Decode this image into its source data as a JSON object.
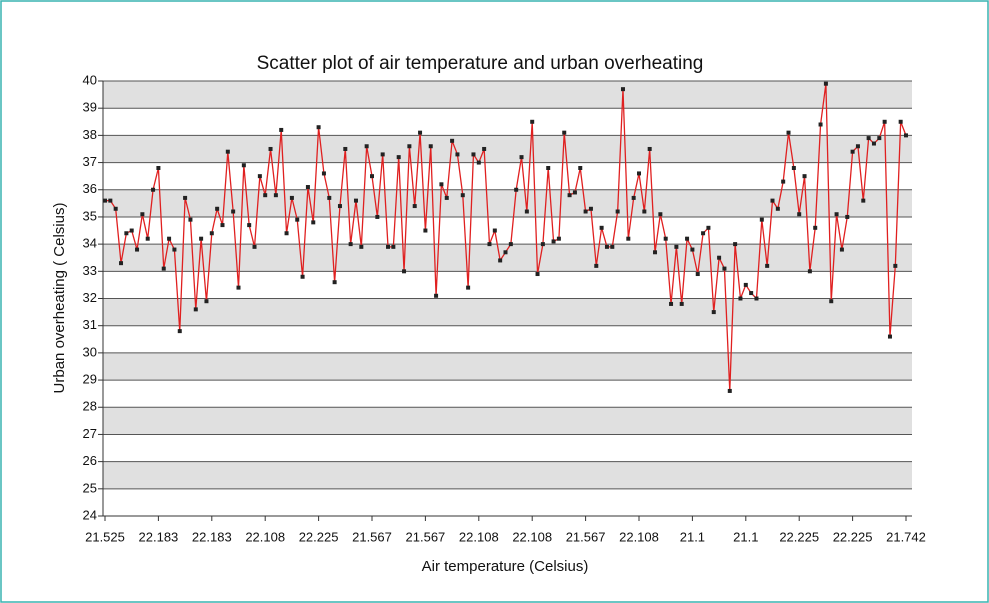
{
  "chart_data": {
    "type": "line",
    "markers": true,
    "title": "Scatter plot of air temperature and urban overheating",
    "x_label": "Air temperature (Celsius)",
    "y_label": "Urban overheating ( Celsius)",
    "series": [
      {
        "name": "Urban overheating",
        "line_color": "#e02020",
        "marker_color": "#222222",
        "values": [
          35.6,
          35.6,
          35.3,
          33.3,
          34.4,
          34.5,
          33.8,
          35.1,
          34.2,
          36.0,
          36.8,
          33.1,
          34.2,
          33.8,
          30.8,
          35.7,
          34.9,
          31.6,
          34.2,
          31.9,
          34.4,
          35.3,
          34.7,
          37.4,
          35.2,
          32.4,
          36.9,
          34.7,
          33.9,
          36.5,
          35.8,
          37.5,
          35.8,
          38.2,
          34.4,
          35.7,
          34.9,
          32.8,
          36.1,
          34.8,
          38.3,
          36.6,
          35.7,
          32.6,
          35.4,
          37.5,
          34.0,
          35.6,
          33.9,
          37.6,
          36.5,
          35.0,
          37.3,
          33.9,
          33.9,
          37.2,
          33.0,
          37.6,
          35.4,
          38.1,
          34.5,
          37.6,
          32.1,
          36.2,
          35.7,
          37.8,
          37.3,
          35.8,
          32.4,
          37.3,
          37.0,
          37.5,
          34.0,
          34.5,
          33.4,
          33.7,
          34.0,
          36.0,
          37.2,
          35.2,
          38.5,
          32.9,
          34.0,
          36.8,
          34.1,
          34.2,
          38.1,
          35.8,
          35.9,
          36.8,
          35.2,
          35.3,
          33.2,
          34.6,
          33.9,
          33.9,
          35.2,
          39.7,
          34.2,
          35.7,
          36.6,
          35.2,
          37.5,
          33.7,
          35.1,
          34.2,
          31.8,
          33.9,
          31.8,
          34.2,
          33.8,
          32.9,
          34.4,
          34.6,
          31.5,
          33.5,
          33.1,
          28.6,
          34.0,
          32.0,
          32.5,
          32.2,
          32.0,
          34.9,
          33.2,
          35.6,
          35.3,
          36.3,
          38.1,
          36.8,
          35.1,
          36.5,
          33.0,
          34.6,
          38.4,
          39.9,
          31.9,
          35.1,
          33.8,
          35.0,
          37.4,
          37.6,
          35.6,
          37.9,
          37.7,
          37.9,
          38.5,
          30.6,
          33.2,
          38.5,
          38.0
        ]
      }
    ],
    "categories": [
      "21.525",
      null,
      null,
      null,
      null,
      null,
      null,
      null,
      null,
      null,
      "22.183",
      null,
      null,
      null,
      null,
      null,
      null,
      null,
      null,
      null,
      "22.183",
      null,
      null,
      null,
      null,
      null,
      null,
      null,
      null,
      null,
      "22.108",
      null,
      null,
      null,
      null,
      null,
      null,
      null,
      null,
      null,
      "22.225",
      null,
      null,
      null,
      null,
      null,
      null,
      null,
      null,
      null,
      "21.567",
      null,
      null,
      null,
      null,
      null,
      null,
      null,
      null,
      null,
      "21.567",
      null,
      null,
      null,
      null,
      null,
      null,
      null,
      null,
      null,
      "22.108",
      null,
      null,
      null,
      null,
      null,
      null,
      null,
      null,
      null,
      "22.108",
      null,
      null,
      null,
      null,
      null,
      null,
      null,
      null,
      null,
      "21.567",
      null,
      null,
      null,
      null,
      null,
      null,
      null,
      null,
      null,
      "22.108",
      null,
      null,
      null,
      null,
      null,
      null,
      null,
      null,
      null,
      "21.1",
      null,
      null,
      null,
      null,
      null,
      null,
      null,
      null,
      null,
      "21.1",
      null,
      null,
      null,
      null,
      null,
      null,
      null,
      null,
      null,
      "22.225",
      null,
      null,
      null,
      null,
      null,
      null,
      null,
      null,
      null,
      "22.225",
      null,
      null,
      null,
      null,
      null,
      null,
      null,
      null,
      null,
      "21.742"
    ],
    "ylim": [
      24,
      40
    ],
    "yticks": [
      24,
      25,
      26,
      27,
      28,
      29,
      30,
      31,
      32,
      33,
      34,
      35,
      36,
      37,
      38,
      39,
      40
    ],
    "grid": true,
    "stripes": true,
    "stripe_color": "#e0e0e0"
  }
}
